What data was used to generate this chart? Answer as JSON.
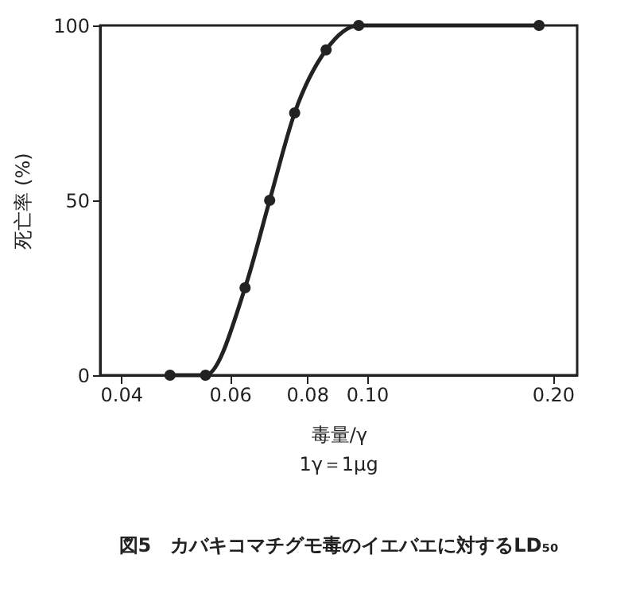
{
  "chart_data": {
    "type": "line",
    "title": "図5　カバキコマチグモ毒のイエバエに対するLD₅₀",
    "xlabel": "毒量/γ",
    "ylabel": "死亡率 (%)",
    "annotations": [
      "1γ＝1μg"
    ],
    "x": [
      0.048,
      0.0548,
      0.0635,
      0.0696,
      0.0764,
      0.0859,
      0.097,
      0.19
    ],
    "series": [
      {
        "color": "#222222",
        "values": [
          0,
          0,
          25,
          50,
          75,
          93,
          100,
          100
        ]
      }
    ],
    "log": "x",
    "xlim": [
      0.037,
      0.219
    ],
    "xticks": [
      0.04,
      0.06,
      0.08,
      {
        "value": 0.1,
        "label": "0.10"
      },
      {
        "value": 0.2,
        "label": "0.20"
      }
    ],
    "ylim": [
      0,
      100
    ],
    "yticks": [
      0,
      50,
      100
    ],
    "grid": false,
    "marker": "circle",
    "line_style": "solid"
  }
}
